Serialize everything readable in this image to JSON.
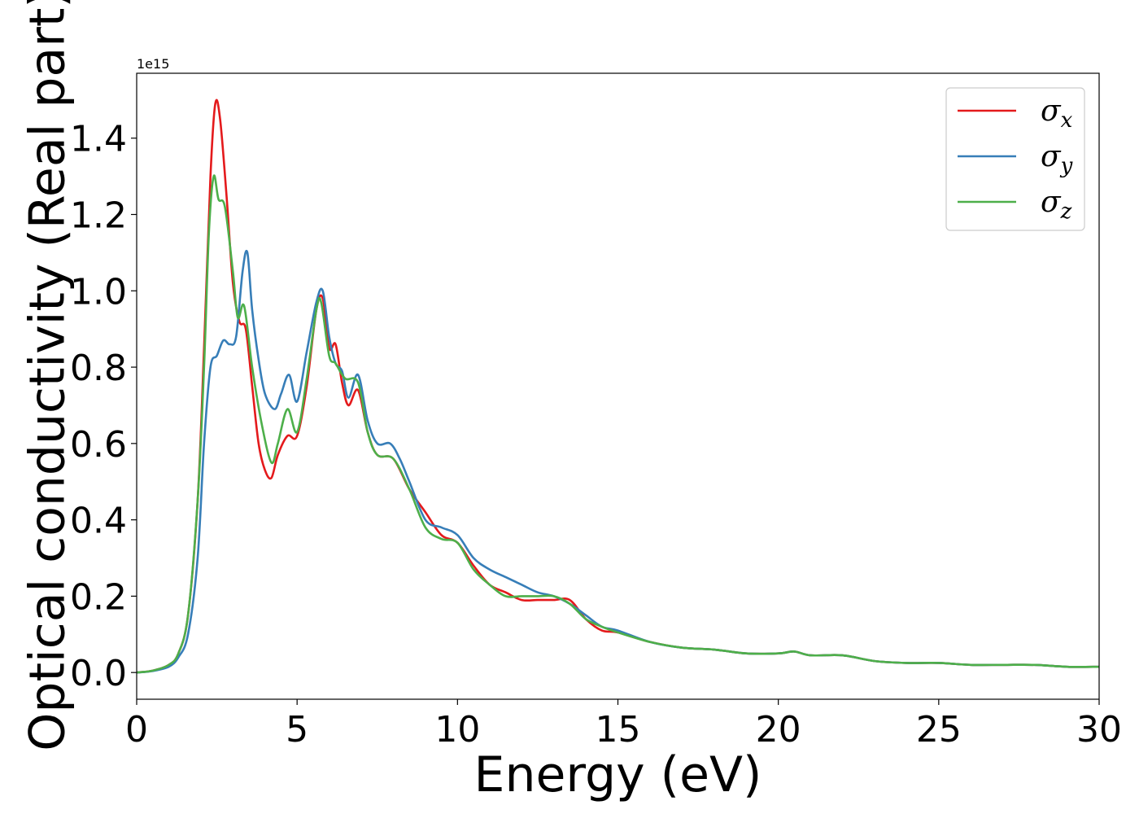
{
  "chart_data": {
    "type": "line",
    "title": "",
    "xlabel": "Energy (eV)",
    "ylabel": "Optical conductivity (Real part)",
    "y_offset_text": "1e15",
    "xlim": [
      0,
      30
    ],
    "ylim": [
      -0.07,
      1.57
    ],
    "x_ticks": [
      0,
      5,
      10,
      15,
      20,
      25,
      30
    ],
    "x_tick_labels": [
      "0",
      "5",
      "10",
      "15",
      "20",
      "25",
      "30"
    ],
    "y_ticks": [
      0.0,
      0.2,
      0.4,
      0.6,
      0.8,
      1.0,
      1.2,
      1.4
    ],
    "y_tick_labels": [
      "0.0",
      "0.2",
      "0.4",
      "0.6",
      "0.8",
      "1.0",
      "1.2",
      "1.4"
    ],
    "grid": false,
    "legend_position": "top-right",
    "series": [
      {
        "name": "σx",
        "legend_symbol": "σ",
        "legend_subscript": "x",
        "color": "#e41a1c",
        "x": [
          0,
          0.5,
          1.0,
          1.3,
          1.6,
          1.9,
          2.1,
          2.3,
          2.45,
          2.6,
          2.8,
          3.0,
          3.2,
          3.4,
          3.6,
          3.8,
          4.0,
          4.2,
          4.4,
          4.7,
          5.0,
          5.3,
          5.6,
          5.8,
          6.0,
          6.2,
          6.4,
          6.6,
          6.9,
          7.2,
          7.5,
          8.0,
          8.5,
          9.0,
          9.5,
          10.0,
          10.5,
          11.0,
          11.5,
          12.0,
          12.5,
          13.0,
          13.5,
          14.0,
          14.5,
          15.0,
          16.0,
          17.0,
          18.0,
          19.0,
          20.0,
          20.5,
          21.0,
          22.0,
          23.0,
          24.0,
          25.0,
          26.0,
          27.0,
          28.0,
          29.0,
          30.0
        ],
        "y": [
          0.0,
          0.005,
          0.02,
          0.05,
          0.15,
          0.45,
          0.85,
          1.3,
          1.49,
          1.45,
          1.25,
          1.02,
          0.92,
          0.9,
          0.75,
          0.6,
          0.53,
          0.51,
          0.57,
          0.62,
          0.62,
          0.75,
          0.95,
          0.98,
          0.85,
          0.86,
          0.76,
          0.7,
          0.74,
          0.63,
          0.57,
          0.56,
          0.48,
          0.42,
          0.36,
          0.34,
          0.28,
          0.23,
          0.21,
          0.19,
          0.19,
          0.19,
          0.19,
          0.14,
          0.11,
          0.105,
          0.08,
          0.065,
          0.06,
          0.05,
          0.05,
          0.055,
          0.045,
          0.045,
          0.03,
          0.025,
          0.025,
          0.02,
          0.02,
          0.02,
          0.015,
          0.015
        ]
      },
      {
        "name": "σy",
        "legend_symbol": "σ",
        "legend_subscript": "y",
        "color": "#377eb8",
        "x": [
          0,
          0.5,
          1.0,
          1.3,
          1.6,
          1.9,
          2.1,
          2.3,
          2.5,
          2.7,
          2.9,
          3.1,
          3.3,
          3.45,
          3.6,
          3.8,
          4.0,
          4.3,
          4.5,
          4.75,
          5.0,
          5.3,
          5.6,
          5.8,
          6.0,
          6.2,
          6.4,
          6.6,
          6.9,
          7.2,
          7.5,
          7.9,
          8.2,
          8.5,
          9.0,
          9.5,
          10.0,
          10.5,
          11.0,
          11.5,
          12.0,
          12.5,
          13.0,
          13.5,
          14.0,
          14.5,
          15.0,
          16.0,
          17.0,
          18.0,
          19.0,
          20.0,
          20.5,
          21.0,
          22.0,
          23.0,
          24.0,
          25.0,
          26.0,
          27.0,
          28.0,
          29.0,
          30.0
        ],
        "y": [
          0.0,
          0.004,
          0.015,
          0.04,
          0.1,
          0.3,
          0.6,
          0.8,
          0.83,
          0.87,
          0.86,
          0.88,
          1.05,
          1.1,
          0.95,
          0.82,
          0.73,
          0.69,
          0.73,
          0.78,
          0.71,
          0.84,
          0.97,
          1.0,
          0.88,
          0.81,
          0.79,
          0.72,
          0.78,
          0.66,
          0.6,
          0.6,
          0.56,
          0.5,
          0.4,
          0.38,
          0.36,
          0.3,
          0.27,
          0.25,
          0.23,
          0.21,
          0.2,
          0.18,
          0.15,
          0.12,
          0.11,
          0.08,
          0.065,
          0.06,
          0.05,
          0.05,
          0.055,
          0.045,
          0.045,
          0.03,
          0.025,
          0.025,
          0.02,
          0.02,
          0.02,
          0.015,
          0.015
        ]
      },
      {
        "name": "σz",
        "legend_symbol": "σ",
        "legend_subscript": "z",
        "color": "#4daf4a",
        "x": [
          0,
          0.5,
          1.0,
          1.3,
          1.6,
          1.9,
          2.1,
          2.25,
          2.4,
          2.55,
          2.75,
          3.0,
          3.15,
          3.35,
          3.6,
          3.9,
          4.2,
          4.4,
          4.7,
          5.0,
          5.3,
          5.6,
          5.75,
          6.0,
          6.2,
          6.5,
          6.9,
          7.2,
          7.5,
          8.0,
          8.5,
          9.0,
          9.5,
          10.0,
          10.5,
          11.0,
          11.5,
          12.0,
          12.5,
          13.0,
          13.5,
          14.0,
          14.5,
          15.0,
          16.0,
          17.0,
          18.0,
          19.0,
          20.0,
          20.5,
          21.0,
          22.0,
          23.0,
          24.0,
          25.0,
          26.0,
          27.0,
          28.0,
          29.0,
          30.0
        ],
        "y": [
          0.0,
          0.005,
          0.02,
          0.05,
          0.15,
          0.45,
          0.8,
          1.15,
          1.3,
          1.24,
          1.22,
          1.05,
          0.93,
          0.96,
          0.8,
          0.65,
          0.55,
          0.6,
          0.69,
          0.63,
          0.77,
          0.95,
          0.97,
          0.83,
          0.81,
          0.77,
          0.76,
          0.63,
          0.57,
          0.56,
          0.48,
          0.38,
          0.35,
          0.34,
          0.27,
          0.23,
          0.2,
          0.2,
          0.2,
          0.2,
          0.18,
          0.14,
          0.12,
          0.105,
          0.08,
          0.065,
          0.06,
          0.05,
          0.05,
          0.055,
          0.045,
          0.045,
          0.03,
          0.025,
          0.025,
          0.02,
          0.02,
          0.02,
          0.015,
          0.015
        ]
      }
    ]
  }
}
